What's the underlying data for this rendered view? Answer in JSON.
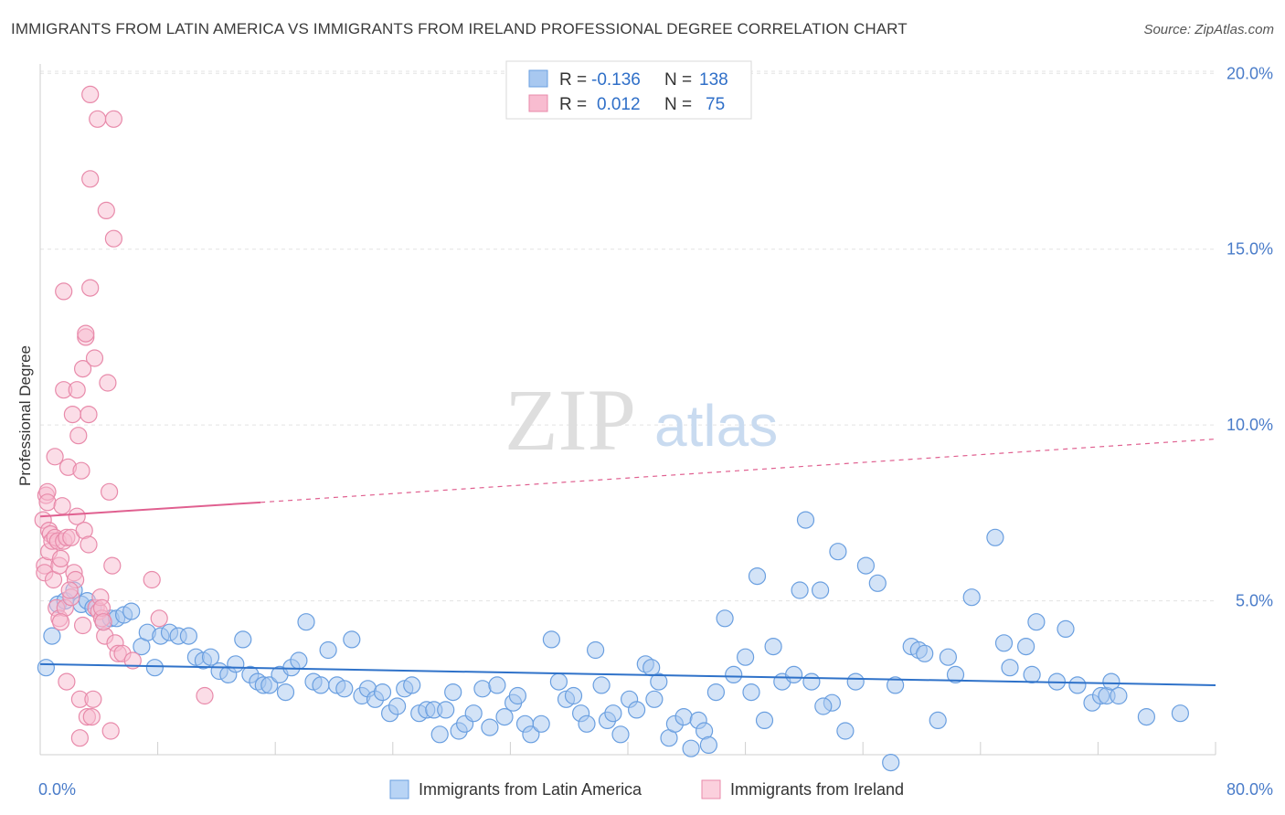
{
  "title": "IMMIGRANTS FROM LATIN AMERICA VS IMMIGRANTS FROM IRELAND PROFESSIONAL DEGREE CORRELATION CHART",
  "source": "Source: ZipAtlas.com",
  "watermark": {
    "zip": "ZIP",
    "atlas": "atlas"
  },
  "legend": {
    "rows": [
      {
        "r_label": "R =",
        "r_value": "-0.136",
        "n_label": "N =",
        "n_value": "138",
        "color": "#a8c8f0",
        "stroke": "#6a9fe0"
      },
      {
        "r_label": "R =",
        "r_value": "0.012",
        "n_label": "N =",
        "n_value": "75",
        "color": "#f8bcd0",
        "stroke": "#e88aaa"
      }
    ]
  },
  "bottom_legend": [
    {
      "label": "Immigrants from Latin America",
      "color": "#b8d4f5",
      "stroke": "#6a9fe0"
    },
    {
      "label": "Immigrants from Ireland",
      "color": "#fbd0dd",
      "stroke": "#e88aaa"
    }
  ],
  "chart_data": {
    "type": "scatter",
    "ylabel": "Professional Degree",
    "xlabel": "",
    "xlim": [
      0,
      80
    ],
    "ylim": [
      0,
      21
    ],
    "x_tick_labels": [
      {
        "value": 0,
        "label": "0.0%"
      },
      {
        "value": 80,
        "label": "80.0%"
      }
    ],
    "x_minor_ticks": [
      0,
      8,
      16,
      24,
      32,
      40,
      48,
      56,
      64,
      72,
      80
    ],
    "y_ticks": [
      {
        "value": 5,
        "label": "5.0%"
      },
      {
        "value": 10,
        "label": "10.0%"
      },
      {
        "value": 15,
        "label": "15.0%"
      },
      {
        "value": 20,
        "label": "20.0%"
      }
    ],
    "grid": true,
    "legend_position": "top-center",
    "series": [
      {
        "name": "Immigrants from Latin America",
        "color": "#6a9fe0",
        "fill": "#a8c8f0",
        "trend": {
          "x0": 0,
          "y0": 3.2,
          "x1": 80,
          "y1": 2.6,
          "style": "solid",
          "color": "#2f72c9"
        },
        "points": [
          [
            0.4,
            3.1
          ],
          [
            0.8,
            4.0
          ],
          [
            1.2,
            4.9
          ],
          [
            1.7,
            5.0
          ],
          [
            2.3,
            5.3
          ],
          [
            2.8,
            4.9
          ],
          [
            3.2,
            5.0
          ],
          [
            3.6,
            4.8
          ],
          [
            4.3,
            4.4
          ],
          [
            4.8,
            4.5
          ],
          [
            5.2,
            4.5
          ],
          [
            5.7,
            4.6
          ],
          [
            6.2,
            4.7
          ],
          [
            6.9,
            3.7
          ],
          [
            7.3,
            4.1
          ],
          [
            7.8,
            3.1
          ],
          [
            8.2,
            4.0
          ],
          [
            8.8,
            4.1
          ],
          [
            9.4,
            4.0
          ],
          [
            10.1,
            4.0
          ],
          [
            10.6,
            3.4
          ],
          [
            11.1,
            3.3
          ],
          [
            11.6,
            3.4
          ],
          [
            12.2,
            3.0
          ],
          [
            12.8,
            2.9
          ],
          [
            13.3,
            3.2
          ],
          [
            13.8,
            3.9
          ],
          [
            14.3,
            2.9
          ],
          [
            14.8,
            2.7
          ],
          [
            15.2,
            2.6
          ],
          [
            15.6,
            2.6
          ],
          [
            16.3,
            2.9
          ],
          [
            16.7,
            2.4
          ],
          [
            17.1,
            3.1
          ],
          [
            17.6,
            3.3
          ],
          [
            18.1,
            4.4
          ],
          [
            18.6,
            2.7
          ],
          [
            19.1,
            2.6
          ],
          [
            19.6,
            3.6
          ],
          [
            20.2,
            2.6
          ],
          [
            20.7,
            2.5
          ],
          [
            21.2,
            3.9
          ],
          [
            21.9,
            2.3
          ],
          [
            22.3,
            2.5
          ],
          [
            22.8,
            2.2
          ],
          [
            23.3,
            2.4
          ],
          [
            23.8,
            1.8
          ],
          [
            24.3,
            2.0
          ],
          [
            24.8,
            2.5
          ],
          [
            25.3,
            2.6
          ],
          [
            25.8,
            1.8
          ],
          [
            26.3,
            1.9
          ],
          [
            26.8,
            1.9
          ],
          [
            27.2,
            1.2
          ],
          [
            27.6,
            1.9
          ],
          [
            28.1,
            2.4
          ],
          [
            28.5,
            1.3
          ],
          [
            28.9,
            1.5
          ],
          [
            29.5,
            1.8
          ],
          [
            30.1,
            2.5
          ],
          [
            30.6,
            1.4
          ],
          [
            31.1,
            2.6
          ],
          [
            31.6,
            1.7
          ],
          [
            32.2,
            2.1
          ],
          [
            32.5,
            2.3
          ],
          [
            33.0,
            1.5
          ],
          [
            33.4,
            1.2
          ],
          [
            34.1,
            1.5
          ],
          [
            34.8,
            3.9
          ],
          [
            35.3,
            2.7
          ],
          [
            35.8,
            2.2
          ],
          [
            36.3,
            2.3
          ],
          [
            36.8,
            1.8
          ],
          [
            37.2,
            1.5
          ],
          [
            37.8,
            3.6
          ],
          [
            38.2,
            2.6
          ],
          [
            38.6,
            1.6
          ],
          [
            39.0,
            1.8
          ],
          [
            39.5,
            1.2
          ],
          [
            40.1,
            2.2
          ],
          [
            40.6,
            1.9
          ],
          [
            41.2,
            3.2
          ],
          [
            41.6,
            3.1
          ],
          [
            42.1,
            2.7
          ],
          [
            42.8,
            1.1
          ],
          [
            43.2,
            1.5
          ],
          [
            43.8,
            1.7
          ],
          [
            44.3,
            0.8
          ],
          [
            44.8,
            1.6
          ],
          [
            45.2,
            1.3
          ],
          [
            46.0,
            2.4
          ],
          [
            46.6,
            4.5
          ],
          [
            47.2,
            2.9
          ],
          [
            48.0,
            3.4
          ],
          [
            48.4,
            2.4
          ],
          [
            48.8,
            5.7
          ],
          [
            49.3,
            1.6
          ],
          [
            49.9,
            3.7
          ],
          [
            50.5,
            2.7
          ],
          [
            51.3,
            2.9
          ],
          [
            51.7,
            5.3
          ],
          [
            52.1,
            7.3
          ],
          [
            52.5,
            2.7
          ],
          [
            53.1,
            5.3
          ],
          [
            53.9,
            2.1
          ],
          [
            54.3,
            6.4
          ],
          [
            54.8,
            1.3
          ],
          [
            55.5,
            2.7
          ],
          [
            56.2,
            6.0
          ],
          [
            57.0,
            5.5
          ],
          [
            58.2,
            2.6
          ],
          [
            59.3,
            3.7
          ],
          [
            59.8,
            3.6
          ],
          [
            60.2,
            3.5
          ],
          [
            61.1,
            1.6
          ],
          [
            61.8,
            3.4
          ],
          [
            62.3,
            2.9
          ],
          [
            63.4,
            5.1
          ],
          [
            65.0,
            6.8
          ],
          [
            65.6,
            3.8
          ],
          [
            66.0,
            3.1
          ],
          [
            67.1,
            3.7
          ],
          [
            67.5,
            2.9
          ],
          [
            67.8,
            4.4
          ],
          [
            69.2,
            2.7
          ],
          [
            69.8,
            4.2
          ],
          [
            70.6,
            2.6
          ],
          [
            71.6,
            2.1
          ],
          [
            72.2,
            2.3
          ],
          [
            72.6,
            2.3
          ],
          [
            72.9,
            2.7
          ],
          [
            73.4,
            2.3
          ],
          [
            75.3,
            1.7
          ],
          [
            77.6,
            1.8
          ],
          [
            41.8,
            2.2
          ],
          [
            57.9,
            0.4
          ],
          [
            45.5,
            0.9
          ],
          [
            53.3,
            2.0
          ]
        ]
      },
      {
        "name": "Immigrants from Ireland",
        "color": "#e88aaa",
        "fill": "#f8bcd0",
        "trend": {
          "x0": 0,
          "y0": 7.4,
          "x1": 15,
          "y1": 7.8,
          "x2": 80,
          "y2": 9.6,
          "style": "solid-then-dashed",
          "color": "#e06090"
        },
        "points": [
          [
            0.2,
            7.3
          ],
          [
            0.3,
            6.0
          ],
          [
            0.3,
            5.8
          ],
          [
            0.4,
            8.0
          ],
          [
            0.5,
            8.1
          ],
          [
            0.5,
            7.8
          ],
          [
            0.6,
            7.0
          ],
          [
            0.6,
            6.4
          ],
          [
            0.7,
            6.9
          ],
          [
            0.8,
            6.7
          ],
          [
            0.9,
            5.6
          ],
          [
            1.0,
            9.1
          ],
          [
            1.0,
            6.8
          ],
          [
            1.1,
            4.8
          ],
          [
            1.2,
            6.7
          ],
          [
            1.3,
            4.5
          ],
          [
            1.3,
            6.0
          ],
          [
            1.4,
            6.2
          ],
          [
            1.5,
            7.7
          ],
          [
            1.6,
            6.7
          ],
          [
            1.6,
            11.0
          ],
          [
            1.6,
            13.8
          ],
          [
            1.7,
            4.8
          ],
          [
            1.8,
            6.8
          ],
          [
            1.9,
            8.8
          ],
          [
            1.8,
            2.7
          ],
          [
            2.1,
            5.1
          ],
          [
            2.1,
            6.8
          ],
          [
            2.2,
            10.3
          ],
          [
            2.3,
            5.8
          ],
          [
            2.4,
            5.6
          ],
          [
            2.5,
            11.0
          ],
          [
            2.5,
            7.4
          ],
          [
            2.6,
            9.7
          ],
          [
            2.7,
            1.1
          ],
          [
            2.7,
            2.2
          ],
          [
            2.8,
            8.7
          ],
          [
            2.9,
            11.6
          ],
          [
            3.0,
            7.0
          ],
          [
            3.1,
            12.5
          ],
          [
            3.1,
            12.6
          ],
          [
            3.2,
            1.7
          ],
          [
            3.3,
            10.3
          ],
          [
            3.3,
            6.6
          ],
          [
            3.4,
            13.9
          ],
          [
            3.4,
            17.0
          ],
          [
            3.5,
            1.7
          ],
          [
            3.4,
            19.4
          ],
          [
            3.6,
            2.2
          ],
          [
            3.7,
            11.9
          ],
          [
            3.8,
            4.8
          ],
          [
            3.9,
            18.7
          ],
          [
            4.0,
            4.7
          ],
          [
            4.1,
            5.1
          ],
          [
            4.2,
            4.5
          ],
          [
            4.2,
            4.8
          ],
          [
            4.4,
            4.0
          ],
          [
            4.5,
            16.1
          ],
          [
            4.6,
            11.2
          ],
          [
            4.7,
            8.1
          ],
          [
            4.8,
            1.3
          ],
          [
            4.9,
            6.0
          ],
          [
            5.0,
            15.3
          ],
          [
            5.0,
            18.7
          ],
          [
            5.1,
            3.8
          ],
          [
            5.3,
            3.5
          ],
          [
            5.6,
            3.5
          ],
          [
            7.6,
            5.6
          ],
          [
            8.1,
            4.5
          ],
          [
            11.2,
            2.3
          ],
          [
            1.4,
            4.4
          ],
          [
            2.0,
            5.3
          ],
          [
            2.9,
            4.3
          ],
          [
            4.3,
            4.4
          ],
          [
            6.3,
            3.3
          ]
        ]
      }
    ]
  }
}
